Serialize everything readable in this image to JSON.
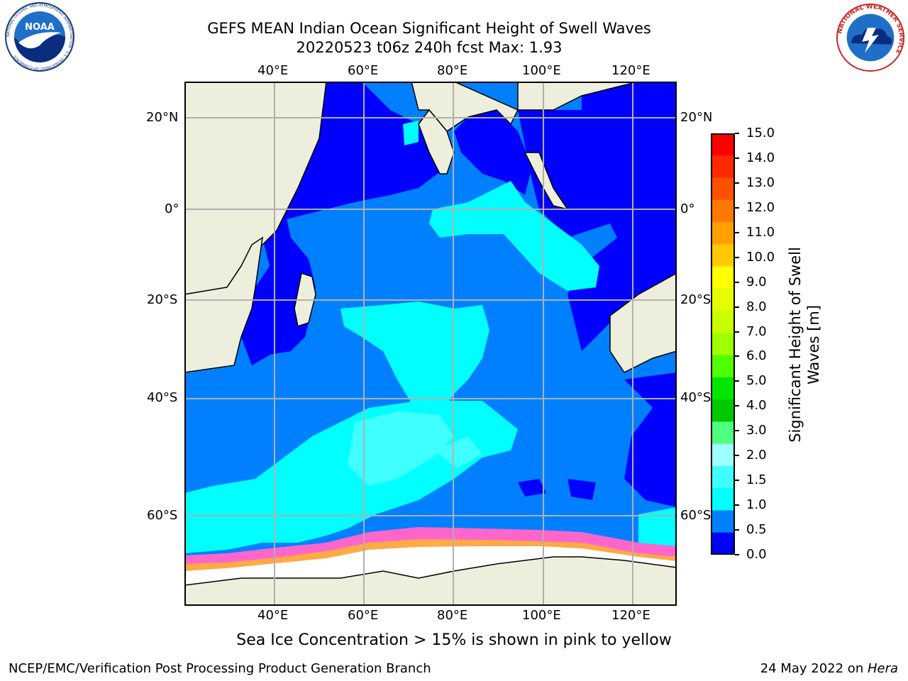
{
  "header": {
    "title_line1": "GEFS MEAN Indian Ocean Significant Height of Swell Waves",
    "title_line2": "20220523 t06z 240h fcst   Max: 1.93"
  },
  "logos": {
    "left_name": "NOAA",
    "left_ring_text": "NATIONAL OCEANIC AND ATMOSPHERIC ADMINISTRATION · U.S. DEPARTMENT OF COMMERCE",
    "right_ring_text": "NATIONAL WEATHER SERVICE"
  },
  "map": {
    "lon_top_labels": [
      "40°E",
      "60°E",
      "80°E",
      "100°E",
      "120°E"
    ],
    "lon_bottom_labels": [
      "40°E",
      "60°E",
      "80°E",
      "100°E",
      "120°E"
    ],
    "lat_left_labels": [
      "20°N",
      "0°",
      "20°S",
      "40°S",
      "60°S"
    ],
    "lat_right_labels": [
      "20°N",
      "0°",
      "20°S",
      "40°S",
      "60°S"
    ],
    "colors": {
      "land": "#eeeedd",
      "ice": "#ffffff",
      "grid": "#b0b0b0",
      "band_0_05": "#0000ff",
      "band_05_1": "#0080ff",
      "band_1_15": "#00ffff",
      "band_15_2": "#40ffff"
    }
  },
  "colorbar": {
    "label_line1": "Significant Height of Swell",
    "label_line2": "Waves [m]",
    "tick_labels": [
      "15.0",
      "14.0",
      "13.0",
      "12.0",
      "11.0",
      "10.0",
      "9.0",
      "8.0",
      "7.0",
      "6.0",
      "5.0",
      "4.0",
      "3.0",
      "2.0",
      "1.5",
      "1.0",
      "0.5",
      "0.0"
    ],
    "segment_colors": [
      "#ff0000",
      "#ff2800",
      "#ff5000",
      "#ff7800",
      "#ffa000",
      "#ffc800",
      "#ffff00",
      "#e6ff00",
      "#c8ff00",
      "#a0ff00",
      "#50ff00",
      "#00e600",
      "#00c800",
      "#50ff80",
      "#a0ffff",
      "#40ffff",
      "#00ffff",
      "#0080ff",
      "#0000ff"
    ]
  },
  "sea_ice_note": "Sea Ice Concentration > 15% is shown in pink to yellow",
  "footer": {
    "left": "NCEP/EMC/Verification Post Processing Product Generation Branch",
    "date": "24 May 2022 on ",
    "host": "Hera"
  }
}
